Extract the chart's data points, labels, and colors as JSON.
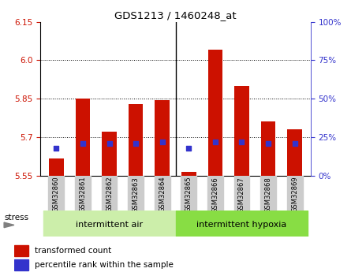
{
  "title": "GDS1213 / 1460248_at",
  "samples": [
    "GSM32860",
    "GSM32861",
    "GSM32862",
    "GSM32863",
    "GSM32864",
    "GSM32865",
    "GSM32866",
    "GSM32867",
    "GSM32868",
    "GSM32869"
  ],
  "bar_values": [
    5.615,
    5.85,
    5.72,
    5.83,
    5.845,
    5.565,
    6.04,
    5.9,
    5.76,
    5.73
  ],
  "blue_dot_values": [
    5.655,
    5.675,
    5.675,
    5.675,
    5.68,
    5.655,
    5.68,
    5.68,
    5.675,
    5.675
  ],
  "ymin": 5.55,
  "ymax": 6.15,
  "yticks_red": [
    5.55,
    5.7,
    5.85,
    6.0,
    6.15
  ],
  "yticks_blue_pct": [
    0,
    25,
    50,
    75,
    100
  ],
  "bar_color": "#cc1100",
  "dot_color": "#3333cc",
  "bar_bottom": 5.55,
  "group1_label": "intermittent air",
  "group2_label": "intermittent hypoxia",
  "group1_color": "#cceeaa",
  "group2_color": "#88dd44",
  "stress_label": "stress",
  "legend_red": "transformed count",
  "legend_blue": "percentile rank within the sample",
  "tick_bg": "#cccccc",
  "grid_lines": [
    5.7,
    5.85,
    6.0
  ]
}
